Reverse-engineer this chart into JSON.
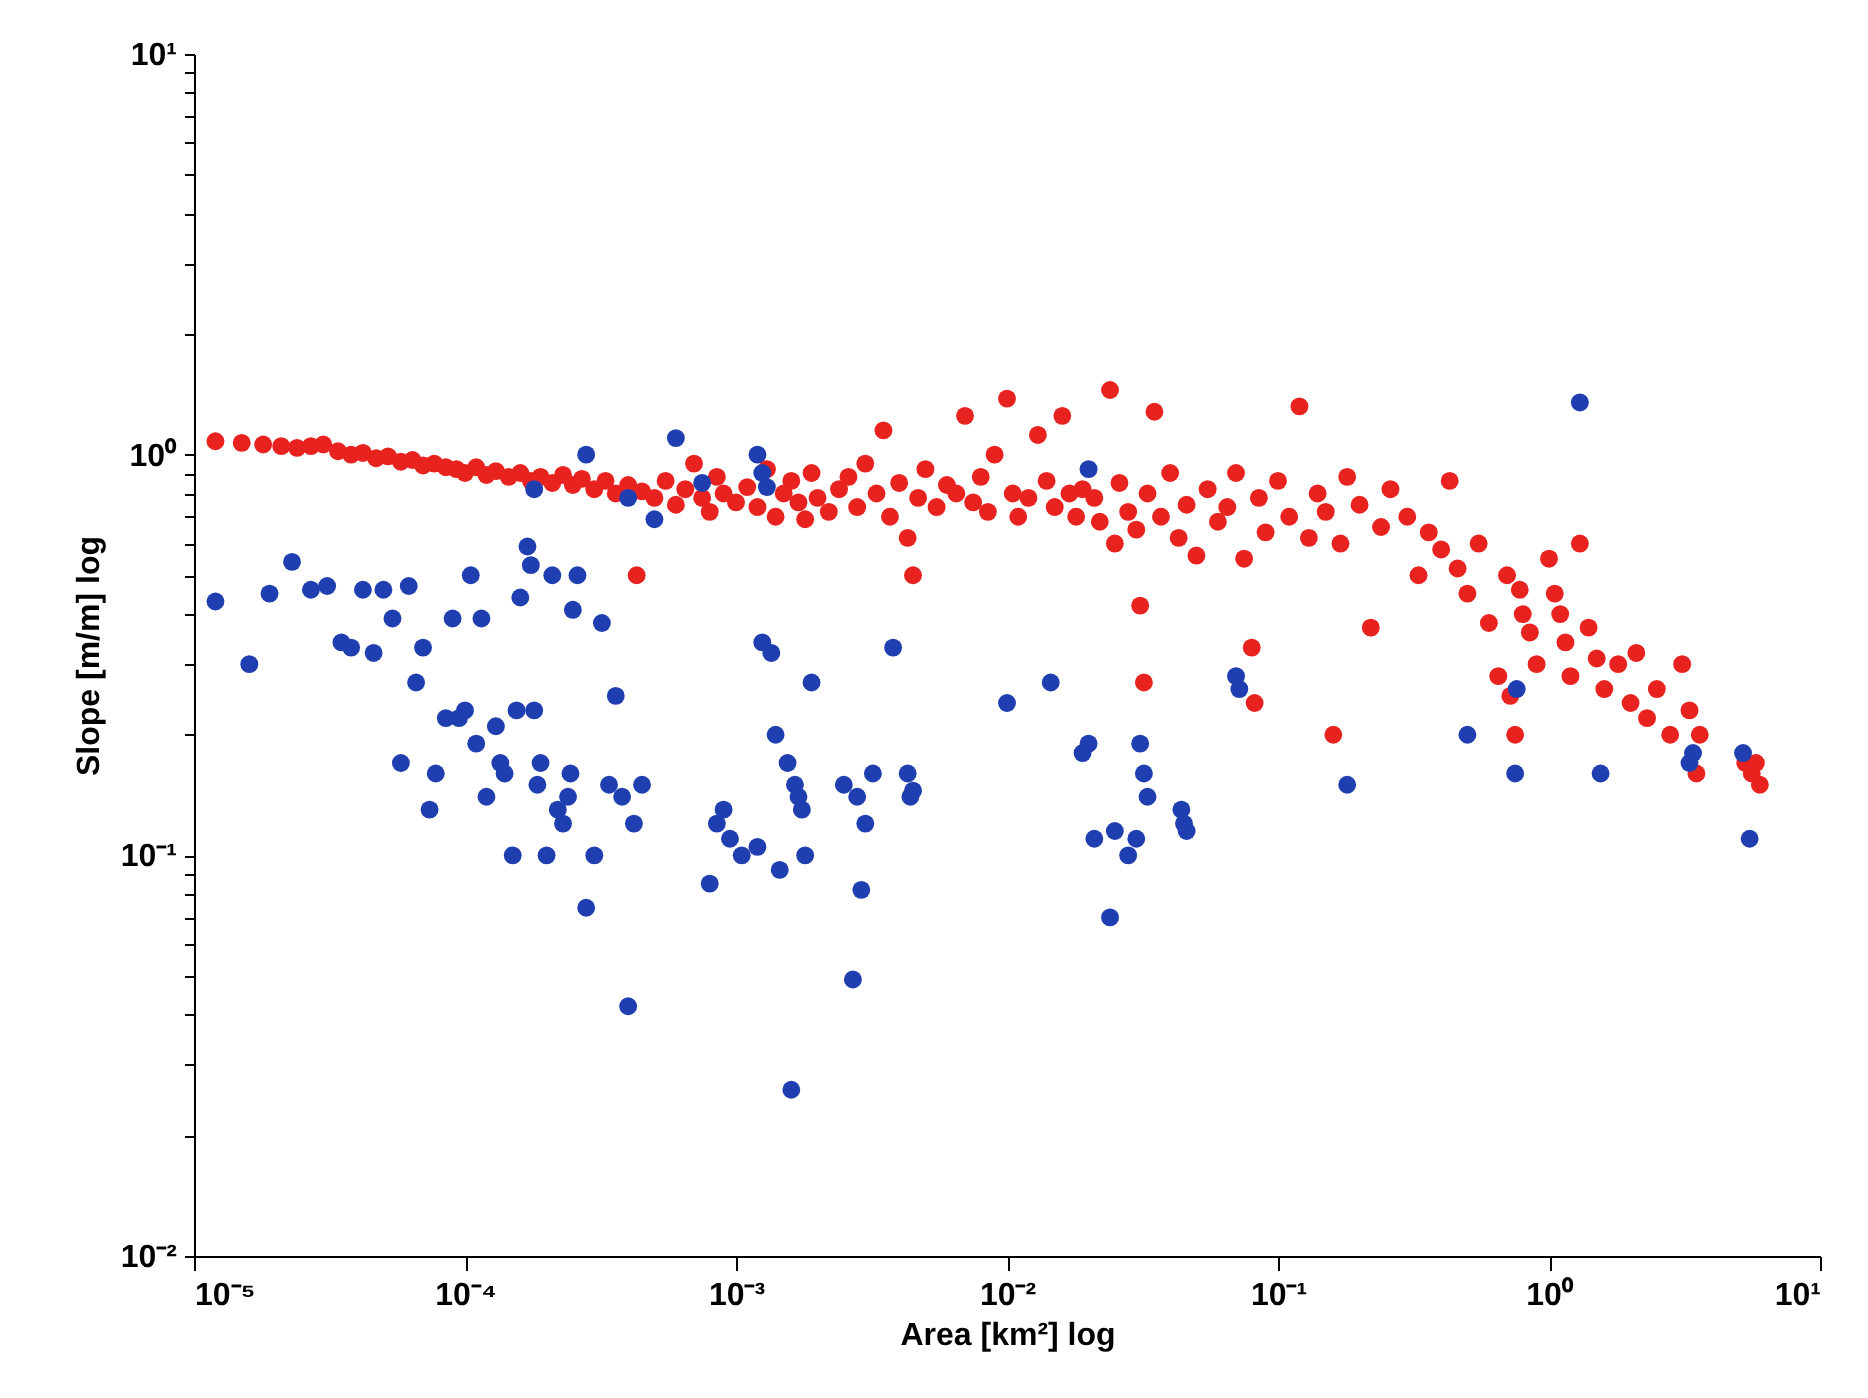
{
  "chart_data": {
    "type": "scatter",
    "xlabel": "Area [km²] log",
    "ylabel": "Slope [m/m] log",
    "log": "xy",
    "marker": "circle",
    "grid": false,
    "xlim": [
      1e-05,
      10
    ],
    "ylim": [
      0.01,
      10
    ],
    "xticks": [
      {
        "value": 1e-05,
        "label": "10⁻⁵"
      },
      {
        "value": 0.0001,
        "label": "10⁻⁴"
      },
      {
        "value": 0.001,
        "label": "10⁻³"
      },
      {
        "value": 0.01,
        "label": "10⁻²"
      },
      {
        "value": 0.1,
        "label": "10⁻¹"
      },
      {
        "value": 1,
        "label": "10⁰"
      },
      {
        "value": 10,
        "label": "10¹"
      }
    ],
    "yticks": [
      {
        "value": 0.01,
        "label": "10⁻²"
      },
      {
        "value": 0.02,
        "label": null
      },
      {
        "value": 0.03,
        "label": null
      },
      {
        "value": 0.04,
        "label": null
      },
      {
        "value": 0.05,
        "label": null
      },
      {
        "value": 0.06,
        "label": null
      },
      {
        "value": 0.07,
        "label": null
      },
      {
        "value": 0.08,
        "label": null
      },
      {
        "value": 0.09,
        "label": null
      },
      {
        "value": 0.1,
        "label": "10⁻¹"
      },
      {
        "value": 0.2,
        "label": null
      },
      {
        "value": 0.3,
        "label": null
      },
      {
        "value": 0.4,
        "label": null
      },
      {
        "value": 0.5,
        "label": null
      },
      {
        "value": 0.6,
        "label": null
      },
      {
        "value": 0.7,
        "label": null
      },
      {
        "value": 0.8,
        "label": null
      },
      {
        "value": 0.9,
        "label": null
      },
      {
        "value": 1,
        "label": "10⁰"
      },
      {
        "value": 2,
        "label": null
      },
      {
        "value": 3,
        "label": null
      },
      {
        "value": 4,
        "label": null
      },
      {
        "value": 5,
        "label": null
      },
      {
        "value": 6,
        "label": null
      },
      {
        "value": 7,
        "label": null
      },
      {
        "value": 8,
        "label": null
      },
      {
        "value": 9,
        "label": null
      },
      {
        "value": 10,
        "label": "10¹"
      }
    ],
    "series": [
      {
        "color": "#e8231f",
        "x": [
          1.2e-05,
          1.5e-05,
          1.8e-05,
          2.1e-05,
          2.4e-05,
          2.7e-05,
          3e-05,
          3.4e-05,
          3.8e-05,
          4.2e-05,
          4.7e-05,
          5.2e-05,
          5.8e-05,
          6.4e-05,
          7e-05,
          7.7e-05,
          8.5e-05,
          9.3e-05,
          0.0001,
          0.00011,
          0.00012,
          0.00013,
          0.000145,
          0.00016,
          0.000175,
          0.00019,
          0.00021,
          0.00023,
          0.00025,
          0.00027,
          0.0003,
          0.00033,
          0.00036,
          0.0004,
          0.00043,
          0.00045,
          0.0005,
          0.00055,
          0.0006,
          0.00065,
          0.0007,
          0.00075,
          0.0008,
          0.00085,
          0.0009,
          0.001,
          0.0011,
          0.0012,
          0.0013,
          0.0014,
          0.0015,
          0.0016,
          0.0017,
          0.0018,
          0.0019,
          0.002,
          0.0022,
          0.0024,
          0.0026,
          0.0028,
          0.003,
          0.0033,
          0.0035,
          0.0037,
          0.004,
          0.0043,
          0.0045,
          0.0047,
          0.005,
          0.0055,
          0.006,
          0.0065,
          0.007,
          0.0075,
          0.008,
          0.0085,
          0.009,
          0.01,
          0.0105,
          0.011,
          0.012,
          0.013,
          0.014,
          0.015,
          0.016,
          0.017,
          0.018,
          0.019,
          0.021,
          0.022,
          0.024,
          0.025,
          0.026,
          0.028,
          0.03,
          0.031,
          0.032,
          0.033,
          0.035,
          0.037,
          0.04,
          0.043,
          0.046,
          0.05,
          0.055,
          0.06,
          0.065,
          0.07,
          0.075,
          0.08,
          0.082,
          0.085,
          0.09,
          0.1,
          0.11,
          0.12,
          0.13,
          0.14,
          0.15,
          0.16,
          0.17,
          0.18,
          0.2,
          0.22,
          0.24,
          0.26,
          0.3,
          0.33,
          0.36,
          0.4,
          0.43,
          0.46,
          0.5,
          0.55,
          0.6,
          0.65,
          0.7,
          0.72,
          0.75,
          0.78,
          0.8,
          0.85,
          0.9,
          1.0,
          1.05,
          1.1,
          1.15,
          1.2,
          1.3,
          1.4,
          1.5,
          1.6,
          1.8,
          2.0,
          2.1,
          2.3,
          2.5,
          2.8,
          3.1,
          3.3,
          3.5,
          3.6,
          5.3,
          5.6,
          5.8,
          6.0
        ],
        "values": [
          1.08,
          1.07,
          1.06,
          1.05,
          1.04,
          1.05,
          1.06,
          1.02,
          1.0,
          1.01,
          0.98,
          0.99,
          0.96,
          0.97,
          0.94,
          0.95,
          0.93,
          0.92,
          0.9,
          0.93,
          0.89,
          0.91,
          0.88,
          0.9,
          0.86,
          0.88,
          0.85,
          0.89,
          0.84,
          0.87,
          0.82,
          0.86,
          0.8,
          0.84,
          0.5,
          0.81,
          0.78,
          0.86,
          0.75,
          0.82,
          0.95,
          0.78,
          0.72,
          0.88,
          0.8,
          0.76,
          0.83,
          0.74,
          0.92,
          0.7,
          0.8,
          0.86,
          0.76,
          0.69,
          0.9,
          0.78,
          0.72,
          0.82,
          0.88,
          0.74,
          0.95,
          0.8,
          1.15,
          0.7,
          0.85,
          0.62,
          0.5,
          0.78,
          0.92,
          0.74,
          0.84,
          0.8,
          1.25,
          0.76,
          0.88,
          0.72,
          1.0,
          1.38,
          0.8,
          0.7,
          0.78,
          1.12,
          0.86,
          0.74,
          1.25,
          0.8,
          0.7,
          0.82,
          0.78,
          0.68,
          1.45,
          0.6,
          0.85,
          0.72,
          0.65,
          0.42,
          0.27,
          0.8,
          1.28,
          0.7,
          0.9,
          0.62,
          0.75,
          0.56,
          0.82,
          0.68,
          0.74,
          0.9,
          0.55,
          0.33,
          0.24,
          0.78,
          0.64,
          0.86,
          0.7,
          1.32,
          0.62,
          0.8,
          0.72,
          0.2,
          0.6,
          0.88,
          0.75,
          0.37,
          0.66,
          0.82,
          0.7,
          0.5,
          0.64,
          0.58,
          0.86,
          0.52,
          0.45,
          0.6,
          0.38,
          0.28,
          0.5,
          0.25,
          0.2,
          0.46,
          0.4,
          0.36,
          0.3,
          0.55,
          0.45,
          0.4,
          0.34,
          0.28,
          0.6,
          0.37,
          0.31,
          0.26,
          0.3,
          0.24,
          0.32,
          0.22,
          0.26,
          0.2,
          0.3,
          0.23,
          0.16,
          0.2,
          0.17,
          0.16,
          0.17,
          0.15
        ]
      },
      {
        "color": "#1f3fb0",
        "x": [
          1.2e-05,
          1.6e-05,
          1.9e-05,
          2.3e-05,
          2.7e-05,
          3.1e-05,
          3.5e-05,
          3.8e-05,
          4.2e-05,
          4.6e-05,
          5e-05,
          5.4e-05,
          5.8e-05,
          6.2e-05,
          6.6e-05,
          7e-05,
          7.4e-05,
          7.8e-05,
          8.5e-05,
          9e-05,
          9.5e-05,
          0.0001,
          0.000105,
          0.00011,
          0.000115,
          0.00012,
          0.00013,
          0.000135,
          0.00014,
          0.00015,
          0.000155,
          0.00016,
          0.00017,
          0.000175,
          0.00018,
          0.000185,
          0.00019,
          0.0002,
          0.00021,
          0.00022,
          0.00023,
          0.00024,
          0.000245,
          0.00025,
          0.00026,
          0.00028,
          0.0003,
          0.00032,
          0.00034,
          0.00036,
          0.00038,
          0.0004,
          0.00042,
          0.00045,
          0.00018,
          0.00028,
          0.0004,
          0.0005,
          0.0006,
          0.00075,
          0.0012,
          0.00125,
          0.0013,
          0.02,
          1.3,
          0.0008,
          0.00085,
          0.0009,
          0.00095,
          0.00105,
          0.0012,
          0.00125,
          0.00135,
          0.0014,
          0.00145,
          0.00155,
          0.0016,
          0.00165,
          0.0017,
          0.00175,
          0.0018,
          0.0019,
          0.0025,
          0.0027,
          0.0028,
          0.0029,
          0.003,
          0.0032,
          0.0038,
          0.0043,
          0.0044,
          0.0045,
          0.01,
          0.0145,
          0.019,
          0.02,
          0.021,
          0.024,
          0.025,
          0.028,
          0.03,
          0.031,
          0.032,
          0.033,
          0.044,
          0.045,
          0.046,
          0.07,
          0.072,
          0.18,
          0.5,
          0.75,
          0.76,
          1.55,
          3.3,
          3.4,
          5.2,
          5.5
        ],
        "values": [
          0.43,
          0.3,
          0.45,
          0.54,
          0.46,
          0.47,
          0.34,
          0.33,
          0.46,
          0.32,
          0.46,
          0.39,
          0.17,
          0.47,
          0.27,
          0.33,
          0.13,
          0.16,
          0.22,
          0.39,
          0.22,
          0.23,
          0.5,
          0.19,
          0.39,
          0.14,
          0.21,
          0.17,
          0.16,
          0.1,
          0.23,
          0.44,
          0.59,
          0.53,
          0.23,
          0.15,
          0.17,
          0.1,
          0.5,
          0.13,
          0.12,
          0.14,
          0.16,
          0.41,
          0.5,
          0.074,
          0.1,
          0.38,
          0.15,
          0.25,
          0.14,
          0.042,
          0.12,
          0.15,
          0.82,
          1.0,
          0.78,
          0.69,
          1.1,
          0.85,
          1.0,
          0.9,
          0.83,
          0.92,
          1.35,
          0.085,
          0.12,
          0.13,
          0.11,
          0.1,
          0.105,
          0.34,
          0.32,
          0.2,
          0.092,
          0.17,
          0.026,
          0.15,
          0.14,
          0.13,
          0.1,
          0.27,
          0.15,
          0.049,
          0.14,
          0.082,
          0.12,
          0.16,
          0.33,
          0.16,
          0.14,
          0.145,
          0.24,
          0.27,
          0.18,
          0.19,
          0.11,
          0.07,
          0.115,
          0.1,
          0.11,
          0.19,
          0.16,
          0.14,
          0.13,
          0.12,
          0.115,
          0.28,
          0.26,
          0.15,
          0.2,
          0.16,
          0.26,
          0.16,
          0.17,
          0.18,
          0.18,
          0.11
        ]
      }
    ]
  }
}
